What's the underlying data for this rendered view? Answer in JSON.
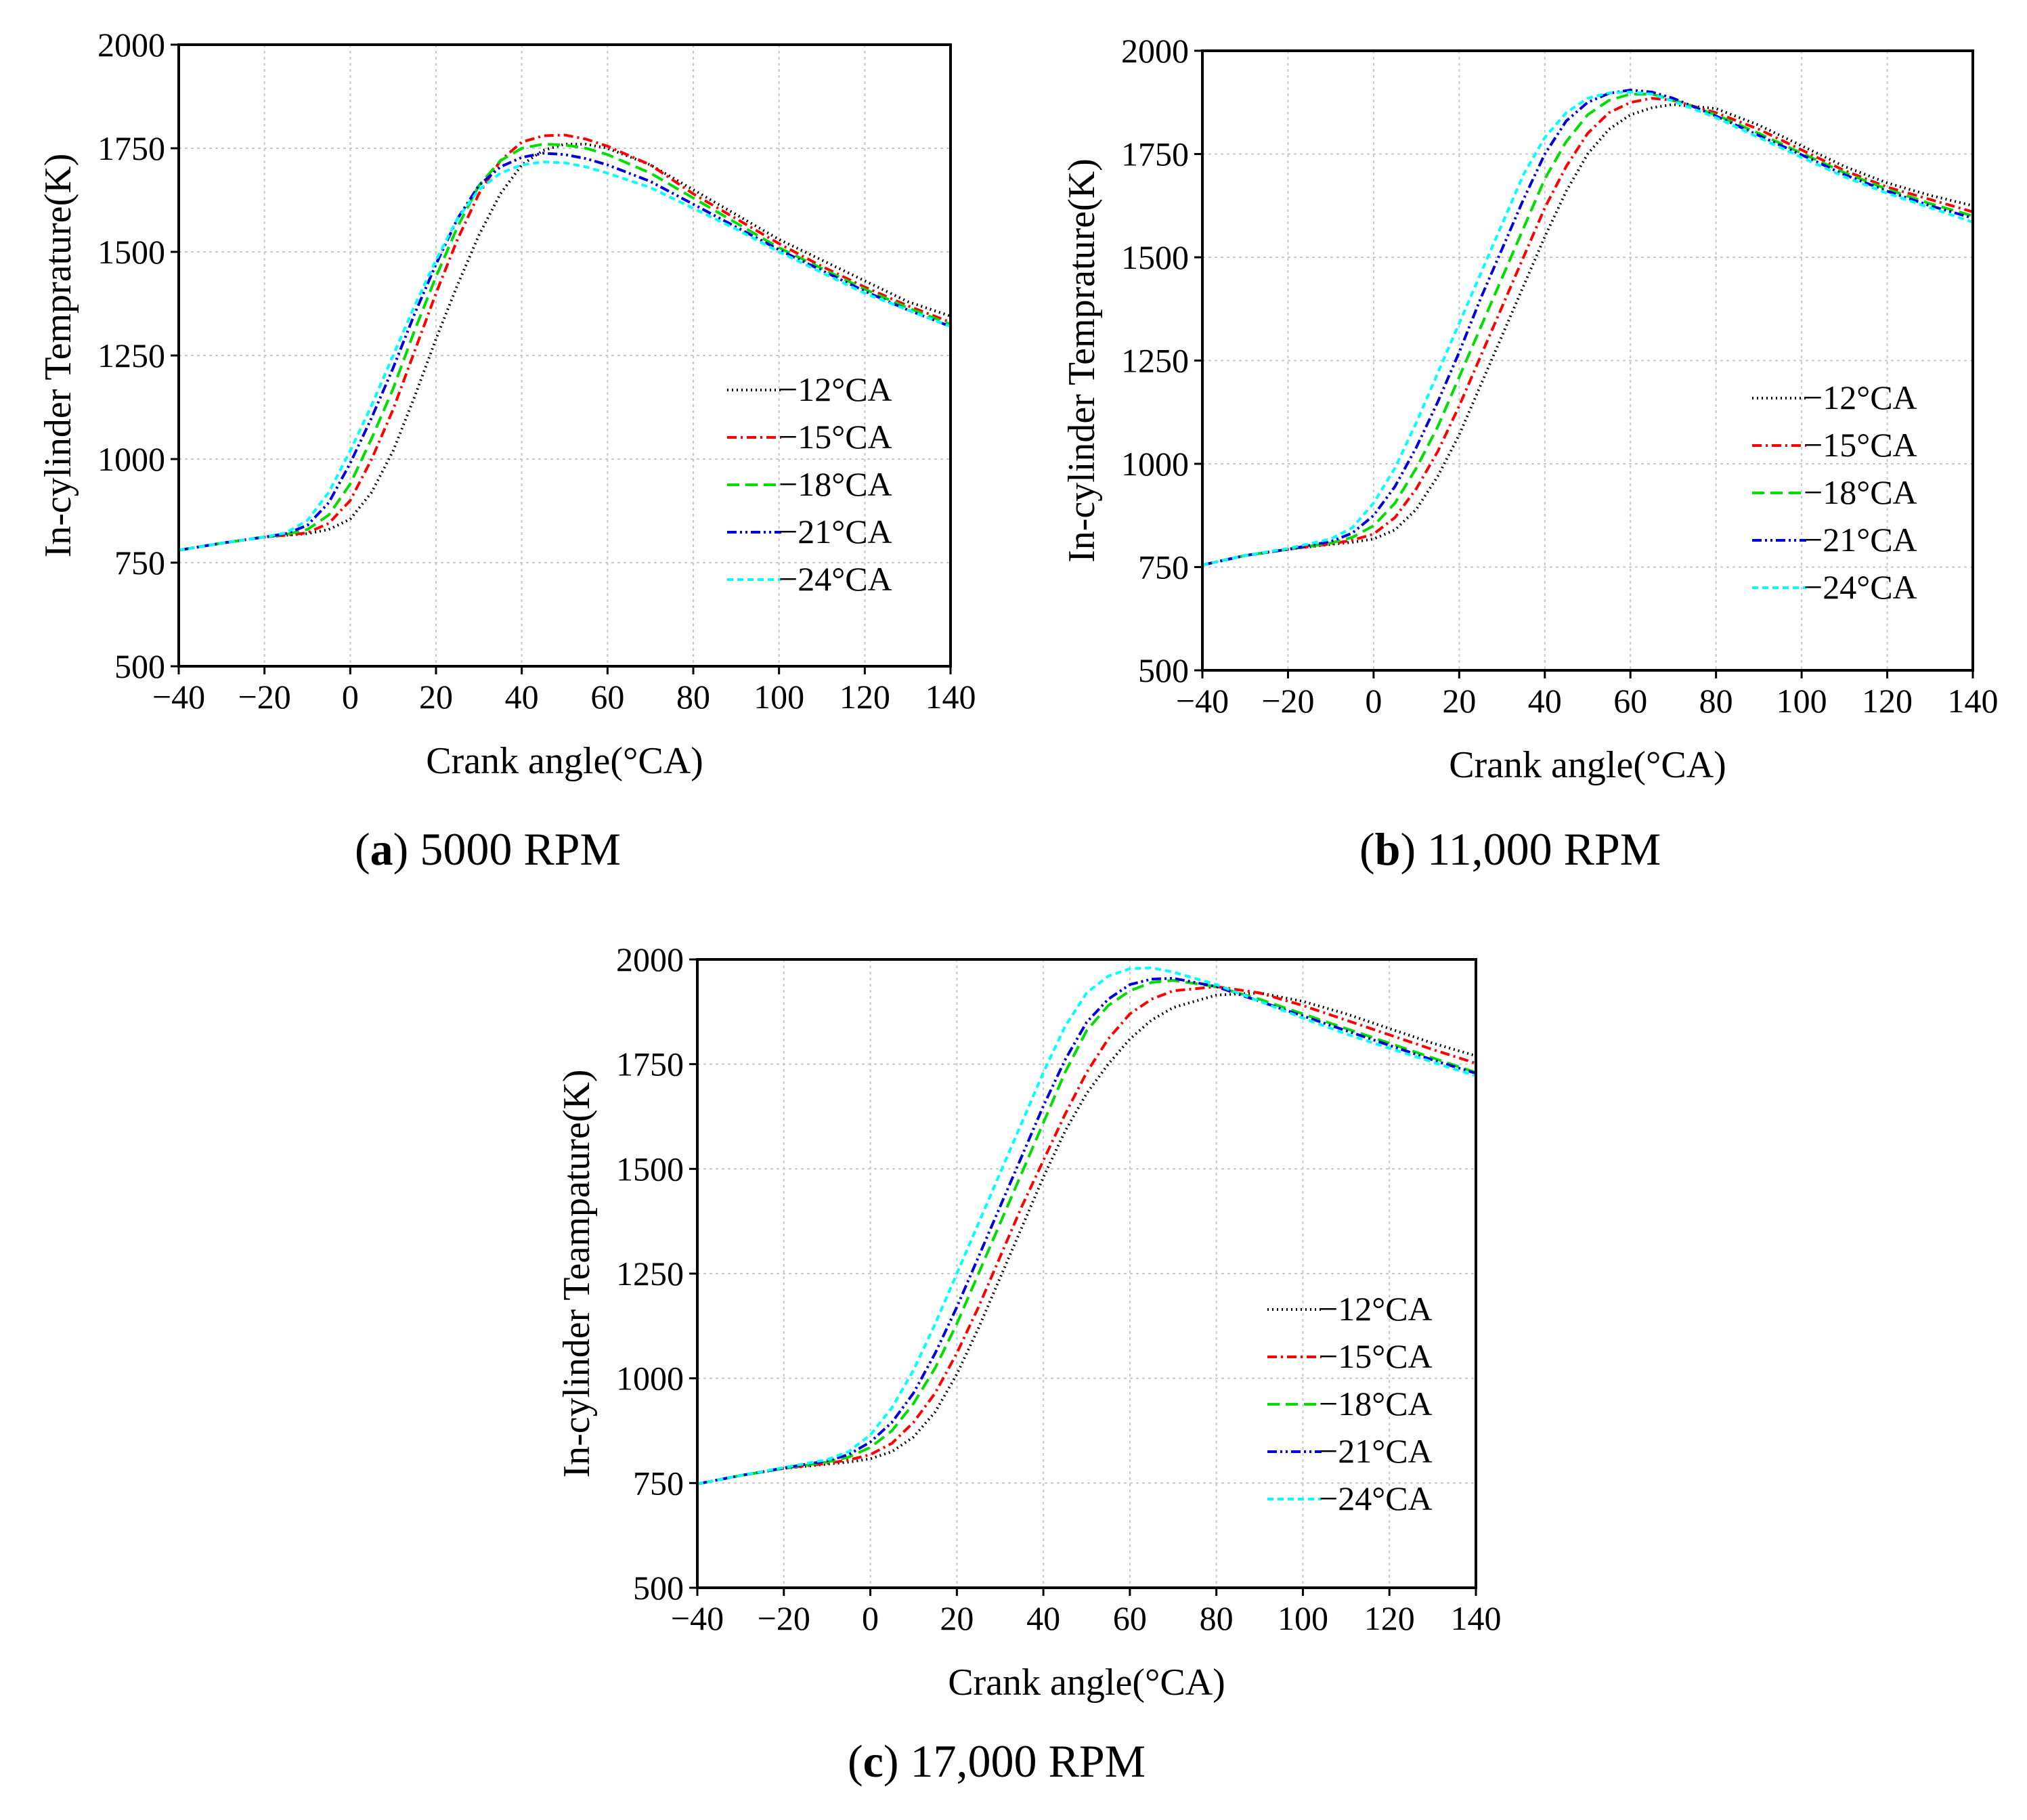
{
  "chart_data": [
    {
      "type": "line",
      "panel": "a",
      "caption_letter": "a",
      "caption_text": "5000 RPM",
      "xlabel": "Crank angle(°CA)",
      "ylabel": "In-cylinder Temprature(K)",
      "xlim": [
        -40,
        140
      ],
      "ylim": [
        500,
        2000
      ],
      "xticks": [
        -40,
        -20,
        0,
        20,
        40,
        60,
        80,
        100,
        120,
        140
      ],
      "yticks": [
        500,
        750,
        1000,
        1250,
        1500,
        1750,
        2000
      ],
      "xtick_labels": [
        "−40",
        "−20",
        "0",
        "20",
        "40",
        "60",
        "80",
        "100",
        "120",
        "140"
      ],
      "ytick_labels": [
        "500",
        "750",
        "1000",
        "1250",
        "1500",
        "1750",
        "2000"
      ],
      "grid": true,
      "legend_position": "center-right",
      "series": [
        {
          "name": "−12°CA",
          "color": "#000000",
          "dash": "dot",
          "x": [
            -40,
            -30,
            -20,
            -15,
            -10,
            -5,
            0,
            5,
            10,
            15,
            20,
            25,
            30,
            35,
            40,
            45,
            50,
            55,
            60,
            70,
            80,
            90,
            100,
            110,
            120,
            130,
            140
          ],
          "y": [
            780,
            797,
            812,
            816,
            820,
            830,
            855,
            920,
            1020,
            1150,
            1290,
            1420,
            1540,
            1640,
            1710,
            1745,
            1760,
            1760,
            1750,
            1710,
            1650,
            1590,
            1530,
            1480,
            1430,
            1380,
            1345
          ]
        },
        {
          "name": "−15°CA",
          "color": "#ff0000",
          "dash": "dashdot",
          "x": [
            -40,
            -30,
            -20,
            -15,
            -10,
            -5,
            0,
            5,
            10,
            15,
            20,
            25,
            30,
            35,
            40,
            45,
            50,
            55,
            60,
            70,
            80,
            90,
            100,
            110,
            120,
            130,
            140
          ],
          "y": [
            780,
            797,
            812,
            816,
            822,
            845,
            900,
            1000,
            1120,
            1260,
            1400,
            1530,
            1640,
            1720,
            1765,
            1780,
            1782,
            1772,
            1755,
            1710,
            1640,
            1580,
            1520,
            1465,
            1415,
            1370,
            1330
          ]
        },
        {
          "name": "−18°CA",
          "color": "#00dd00",
          "dash": "dash",
          "x": [
            -40,
            -30,
            -20,
            -15,
            -10,
            -5,
            0,
            5,
            10,
            15,
            20,
            25,
            30,
            35,
            40,
            45,
            50,
            55,
            60,
            70,
            80,
            90,
            100,
            110,
            120,
            130,
            140
          ],
          "y": [
            780,
            797,
            812,
            818,
            830,
            865,
            940,
            1050,
            1170,
            1310,
            1440,
            1560,
            1660,
            1720,
            1750,
            1760,
            1758,
            1750,
            1735,
            1690,
            1630,
            1570,
            1510,
            1460,
            1410,
            1365,
            1325
          ]
        },
        {
          "name": "−21°CA",
          "color": "#0000dd",
          "dash": "dashdotdot",
          "x": [
            -40,
            -30,
            -20,
            -15,
            -10,
            -5,
            0,
            5,
            10,
            15,
            20,
            25,
            30,
            35,
            40,
            45,
            50,
            55,
            60,
            70,
            80,
            90,
            100,
            110,
            120,
            130,
            140
          ],
          "y": [
            780,
            797,
            812,
            820,
            840,
            895,
            990,
            1100,
            1220,
            1350,
            1470,
            1580,
            1660,
            1705,
            1728,
            1738,
            1735,
            1725,
            1710,
            1670,
            1615,
            1560,
            1505,
            1455,
            1405,
            1360,
            1320
          ]
        },
        {
          "name": "−24°CA",
          "color": "#00ffff",
          "dash": "shortdash",
          "x": [
            -40,
            -30,
            -20,
            -15,
            -10,
            -5,
            0,
            5,
            10,
            15,
            20,
            25,
            30,
            35,
            40,
            45,
            50,
            55,
            60,
            70,
            80,
            90,
            100,
            110,
            120,
            130,
            140
          ],
          "y": [
            780,
            797,
            812,
            822,
            852,
            920,
            1020,
            1130,
            1250,
            1370,
            1480,
            1580,
            1650,
            1690,
            1710,
            1717,
            1715,
            1705,
            1690,
            1655,
            1605,
            1555,
            1500,
            1450,
            1400,
            1360,
            1320
          ]
        }
      ]
    },
    {
      "type": "line",
      "panel": "b",
      "caption_letter": "b",
      "caption_text": "11,000 RPM",
      "xlabel": "Crank angle(°CA)",
      "ylabel": "In-cylinder Temprature(K)",
      "xlim": [
        -40,
        140
      ],
      "ylim": [
        500,
        2000
      ],
      "xticks": [
        -40,
        -20,
        0,
        20,
        40,
        60,
        80,
        100,
        120,
        140
      ],
      "yticks": [
        500,
        750,
        1000,
        1250,
        1500,
        1750,
        2000
      ],
      "xtick_labels": [
        "−40",
        "−20",
        "0",
        "20",
        "40",
        "60",
        "80",
        "100",
        "120",
        "140"
      ],
      "ytick_labels": [
        "500",
        "750",
        "1000",
        "1250",
        "1500",
        "1750",
        "2000"
      ],
      "grid": true,
      "legend_position": "center-right",
      "series": [
        {
          "name": "−12°CA",
          "color": "#000000",
          "dash": "dot",
          "x": [
            -40,
            -30,
            -20,
            -10,
            -5,
            0,
            5,
            10,
            15,
            20,
            25,
            30,
            35,
            40,
            45,
            50,
            55,
            60,
            65,
            70,
            80,
            90,
            100,
            110,
            120,
            130,
            140
          ],
          "y": [
            755,
            778,
            793,
            805,
            810,
            818,
            840,
            890,
            970,
            1070,
            1190,
            1310,
            1430,
            1550,
            1660,
            1750,
            1810,
            1845,
            1862,
            1870,
            1860,
            1820,
            1770,
            1720,
            1680,
            1650,
            1625
          ]
        },
        {
          "name": "−15°CA",
          "color": "#ff0000",
          "dash": "dashdot",
          "x": [
            -40,
            -30,
            -20,
            -10,
            -5,
            0,
            5,
            10,
            15,
            20,
            25,
            30,
            35,
            40,
            45,
            50,
            55,
            60,
            65,
            70,
            80,
            90,
            100,
            110,
            120,
            130,
            140
          ],
          "y": [
            755,
            778,
            793,
            806,
            815,
            830,
            870,
            940,
            1030,
            1140,
            1260,
            1380,
            1500,
            1620,
            1720,
            1800,
            1850,
            1875,
            1885,
            1880,
            1850,
            1810,
            1760,
            1710,
            1670,
            1640,
            1610
          ]
        },
        {
          "name": "−18°CA",
          "color": "#00dd00",
          "dash": "dash",
          "x": [
            -40,
            -30,
            -20,
            -10,
            -5,
            0,
            5,
            10,
            15,
            20,
            25,
            30,
            35,
            40,
            45,
            50,
            55,
            60,
            65,
            70,
            80,
            90,
            100,
            110,
            120,
            130,
            140
          ],
          "y": [
            755,
            778,
            793,
            808,
            822,
            850,
            905,
            990,
            1090,
            1210,
            1330,
            1450,
            1570,
            1690,
            1780,
            1845,
            1880,
            1895,
            1895,
            1882,
            1845,
            1800,
            1752,
            1705,
            1665,
            1630,
            1600
          ]
        },
        {
          "name": "−21°CA",
          "color": "#0000dd",
          "dash": "dashdotdot",
          "x": [
            -40,
            -30,
            -20,
            -10,
            -5,
            0,
            5,
            10,
            15,
            20,
            25,
            30,
            35,
            40,
            45,
            50,
            55,
            60,
            65,
            70,
            80,
            90,
            100,
            110,
            120,
            130,
            140
          ],
          "y": [
            755,
            778,
            793,
            812,
            832,
            875,
            945,
            1040,
            1150,
            1270,
            1400,
            1520,
            1640,
            1750,
            1830,
            1875,
            1897,
            1905,
            1900,
            1885,
            1842,
            1795,
            1748,
            1700,
            1660,
            1625,
            1595
          ]
        },
        {
          "name": "−24°CA",
          "color": "#00ffff",
          "dash": "shortdash",
          "x": [
            -40,
            -30,
            -20,
            -10,
            -5,
            0,
            5,
            10,
            15,
            20,
            25,
            30,
            35,
            40,
            45,
            50,
            55,
            60,
            65,
            70,
            80,
            90,
            100,
            110,
            120,
            130,
            140
          ],
          "y": [
            755,
            778,
            795,
            818,
            845,
            905,
            990,
            1100,
            1220,
            1340,
            1460,
            1580,
            1700,
            1790,
            1850,
            1885,
            1898,
            1900,
            1895,
            1878,
            1838,
            1790,
            1742,
            1695,
            1655,
            1620,
            1585
          ]
        }
      ]
    },
    {
      "type": "line",
      "panel": "c",
      "caption_letter": "c",
      "caption_text": "17,000 RPM",
      "xlabel": "Crank angle(°CA)",
      "ylabel": "In-cylinder Teampature(K)",
      "xlim": [
        -40,
        140
      ],
      "ylim": [
        500,
        2000
      ],
      "xticks": [
        -40,
        -20,
        0,
        20,
        40,
        60,
        80,
        100,
        120,
        140
      ],
      "yticks": [
        500,
        750,
        1000,
        1250,
        1500,
        1750,
        2000
      ],
      "xtick_labels": [
        "−40",
        "−20",
        "0",
        "20",
        "40",
        "60",
        "80",
        "100",
        "120",
        "140"
      ],
      "ytick_labels": [
        "500",
        "750",
        "1000",
        "1250",
        "1500",
        "1750",
        "2000"
      ],
      "grid": true,
      "legend_position": "center-right",
      "series": [
        {
          "name": "−12°CA",
          "color": "#000000",
          "dash": "dot",
          "x": [
            -40,
            -30,
            -20,
            -10,
            -5,
            0,
            5,
            10,
            15,
            20,
            25,
            30,
            35,
            40,
            45,
            50,
            55,
            60,
            65,
            70,
            80,
            90,
            100,
            110,
            120,
            130,
            140
          ],
          "y": [
            748,
            768,
            785,
            795,
            800,
            808,
            825,
            860,
            920,
            1010,
            1120,
            1240,
            1360,
            1480,
            1590,
            1680,
            1750,
            1810,
            1855,
            1885,
            1915,
            1920,
            1900,
            1870,
            1835,
            1800,
            1770
          ]
        },
        {
          "name": "−15°CA",
          "color": "#ff0000",
          "dash": "dashdot",
          "x": [
            -40,
            -30,
            -20,
            -10,
            -5,
            0,
            5,
            10,
            15,
            20,
            25,
            30,
            35,
            40,
            45,
            50,
            55,
            60,
            65,
            70,
            80,
            90,
            100,
            110,
            120,
            130,
            140
          ],
          "y": [
            748,
            768,
            785,
            797,
            805,
            818,
            845,
            895,
            965,
            1060,
            1170,
            1290,
            1410,
            1520,
            1630,
            1730,
            1810,
            1870,
            1905,
            1925,
            1935,
            1920,
            1890,
            1855,
            1820,
            1785,
            1752
          ]
        },
        {
          "name": "−18°CA",
          "color": "#00dd00",
          "dash": "dash",
          "x": [
            -40,
            -30,
            -20,
            -10,
            -5,
            0,
            5,
            10,
            15,
            20,
            25,
            30,
            35,
            40,
            45,
            50,
            55,
            60,
            65,
            70,
            80,
            90,
            100,
            110,
            120,
            130,
            140
          ],
          "y": [
            748,
            768,
            785,
            800,
            812,
            835,
            875,
            940,
            1025,
            1130,
            1250,
            1370,
            1490,
            1610,
            1730,
            1830,
            1890,
            1925,
            1945,
            1950,
            1935,
            1905,
            1870,
            1835,
            1800,
            1765,
            1730
          ]
        },
        {
          "name": "−21°CA",
          "color": "#0000dd",
          "dash": "dashdotdot",
          "x": [
            -40,
            -30,
            -20,
            -10,
            -5,
            0,
            5,
            10,
            15,
            20,
            25,
            30,
            35,
            40,
            45,
            50,
            55,
            60,
            65,
            70,
            80,
            90,
            100,
            110,
            120,
            130,
            140
          ],
          "y": [
            748,
            768,
            786,
            803,
            818,
            848,
            895,
            965,
            1060,
            1170,
            1290,
            1410,
            1530,
            1650,
            1760,
            1850,
            1905,
            1940,
            1953,
            1955,
            1935,
            1900,
            1865,
            1830,
            1795,
            1760,
            1728
          ]
        },
        {
          "name": "−24°CA",
          "color": "#00ffff",
          "dash": "shortdash",
          "x": [
            -40,
            -30,
            -20,
            -10,
            -5,
            0,
            5,
            10,
            15,
            20,
            25,
            30,
            35,
            40,
            45,
            50,
            55,
            60,
            65,
            70,
            80,
            90,
            100,
            110,
            120,
            130,
            140
          ],
          "y": [
            748,
            768,
            787,
            806,
            825,
            865,
            930,
            1020,
            1130,
            1250,
            1370,
            1490,
            1610,
            1730,
            1840,
            1920,
            1960,
            1978,
            1980,
            1970,
            1940,
            1900,
            1860,
            1822,
            1788,
            1755,
            1722
          ]
        }
      ]
    }
  ]
}
